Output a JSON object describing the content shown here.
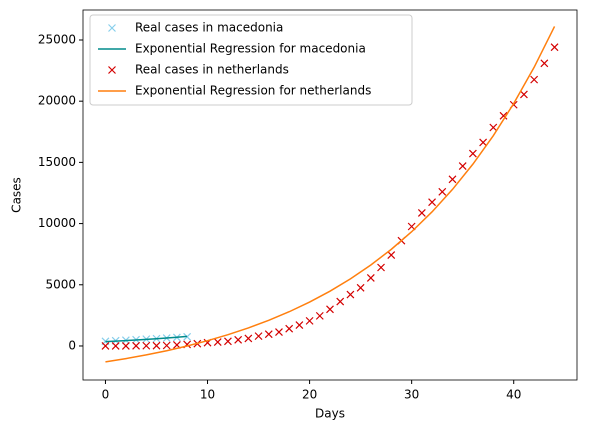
{
  "chart_data": {
    "type": "line",
    "xlabel": "Days",
    "ylabel": "Cases",
    "xlim": [
      -2.2,
      46.2
    ],
    "xticks": [
      0,
      10,
      20,
      30,
      40
    ],
    "ylim": [
      -2780,
      27450
    ],
    "yticks": [
      0,
      5000,
      10000,
      15000,
      20000,
      25000
    ],
    "legend": "upper left",
    "series": [
      {
        "name": "Real cases in macedonia",
        "color": "#87ceeb",
        "style": "marker",
        "x": [
          0,
          1,
          2,
          3,
          4,
          5,
          6,
          7,
          8
        ],
        "values": [
          380,
          430,
          470,
          510,
          560,
          600,
          650,
          700,
          750
        ]
      },
      {
        "name": "Exponential Regression for macedonia",
        "color": "#008b8b",
        "style": "line",
        "x": [
          0,
          1,
          2,
          3,
          4,
          5,
          6,
          7,
          8
        ],
        "values": [
          360,
          400,
          440,
          490,
          540,
          590,
          650,
          710,
          780
        ]
      },
      {
        "name": "Real cases in netherlands",
        "color": "#d40000",
        "style": "marker",
        "x": [
          0,
          1,
          2,
          3,
          4,
          5,
          6,
          7,
          8,
          9,
          10,
          11,
          12,
          13,
          14,
          15,
          16,
          17,
          18,
          19,
          20,
          21,
          22,
          23,
          24,
          25,
          26,
          27,
          28,
          29,
          30,
          31,
          32,
          33,
          34,
          35,
          36,
          37,
          38,
          39,
          40,
          41,
          42,
          43,
          44
        ],
        "values": [
          1,
          2,
          7,
          10,
          18,
          24,
          38,
          82,
          128,
          188,
          265,
          321,
          382,
          503,
          614,
          804,
          959,
          1135,
          1413,
          1705,
          2051,
          2460,
          2994,
          3631,
          4204,
          4749,
          5560,
          6412,
          7431,
          8603,
          9762,
          10866,
          11750,
          12595,
          13614,
          14697,
          15723,
          16627,
          17851,
          18803,
          19709,
          20549,
          21762,
          23097,
          24413
        ]
      },
      {
        "name": "Exponential Regression for netherlands",
        "color": "#ff7f0e",
        "style": "line",
        "x": [
          0,
          2,
          4,
          6,
          8,
          10,
          12,
          14,
          16,
          18,
          20,
          22,
          24,
          26,
          28,
          30,
          32,
          34,
          36,
          38,
          40,
          42,
          44
        ],
        "values": [
          -1300,
          -1031,
          -729,
          -388,
          -2,
          431,
          921,
          1472,
          2094,
          2796,
          3586,
          4478,
          5483,
          6616,
          7894,
          9334,
          10959,
          12790,
          14855,
          17184,
          19809,
          22769,
          26106
        ]
      }
    ]
  }
}
